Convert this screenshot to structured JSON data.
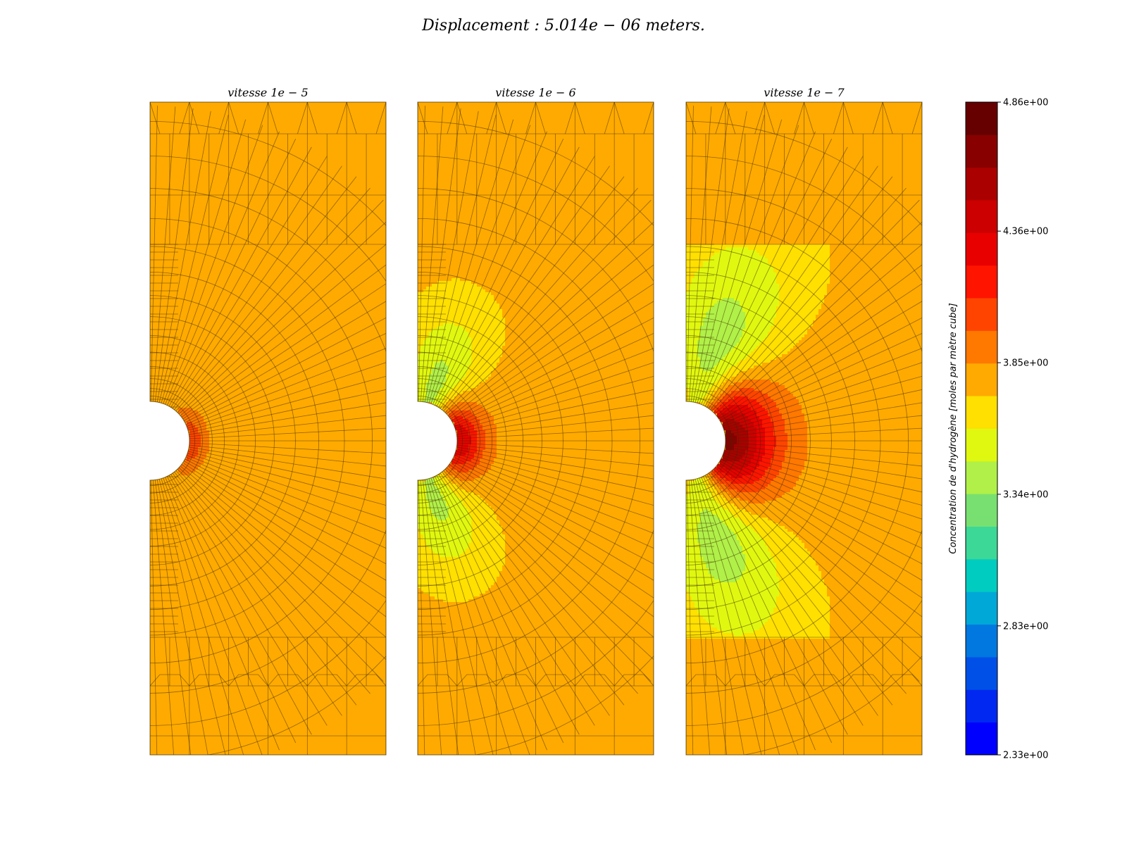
{
  "figure": {
    "suptitle": "Displacement : 5.014e − 06 meters."
  },
  "chart_data": {
    "type": "heatmap",
    "subtype": "finite-element contour field (plate with semicircular notch)",
    "panels": [
      {
        "title": "vitesse 1e − 5",
        "notch_peak_level": 4.1,
        "peak_spread": 0.5,
        "lobe_strength": 0.05
      },
      {
        "title": "vitesse 1e − 6",
        "notch_peak_level": 4.35,
        "peak_spread": 1.1,
        "lobe_strength": 0.55
      },
      {
        "title": "vitesse 1e − 7",
        "notch_peak_level": 4.65,
        "peak_spread": 2.3,
        "lobe_strength": 1.0
      }
    ],
    "background_level": 3.8,
    "colorbar": {
      "label": "Concentration de d'hydrogène [moles par mètre cube]",
      "min": 2.33,
      "max": 4.86,
      "ticks": [
        "2.33e+00",
        "2.83e+00",
        "3.34e+00",
        "3.85e+00",
        "4.36e+00",
        "4.86e+00"
      ],
      "tick_values": [
        2.33,
        2.83,
        3.34,
        3.85,
        4.36,
        4.86
      ],
      "levels": 20,
      "colors": [
        "#0000ff",
        "#0028f0",
        "#0050e8",
        "#0078e0",
        "#00a8d8",
        "#00ccc0",
        "#3cd898",
        "#78e070",
        "#b0f048",
        "#e0f810",
        "#ffe000",
        "#ffaa00",
        "#ff7800",
        "#ff4400",
        "#ff1400",
        "#e80000",
        "#cc0000",
        "#aa0000",
        "#880000",
        "#660000"
      ]
    }
  }
}
